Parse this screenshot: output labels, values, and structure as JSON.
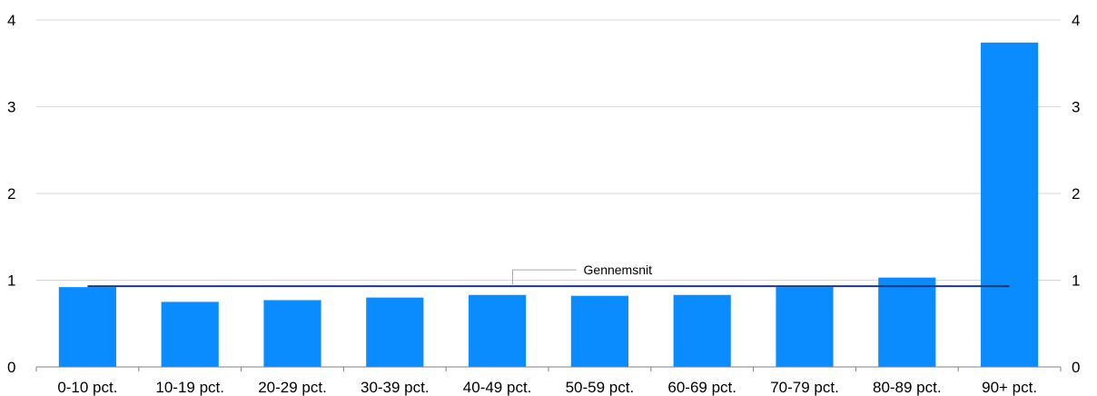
{
  "chart_data": {
    "type": "bar",
    "categories": [
      "0-10 pct.",
      "10-19 pct.",
      "20-29 pct.",
      "30-39 pct.",
      "40-49 pct.",
      "50-59 pct.",
      "60-69 pct.",
      "70-79 pct.",
      "80-89 pct.",
      "90+ pct."
    ],
    "values": [
      0.92,
      0.75,
      0.77,
      0.8,
      0.83,
      0.82,
      0.83,
      0.92,
      1.03,
      3.74
    ],
    "reference_line": {
      "label": "Gennemsnit",
      "value": 0.93
    },
    "ylim": [
      0,
      4
    ],
    "yticks_left": [
      "0",
      "1",
      "2",
      "3",
      "4"
    ],
    "yticks_right": [
      "0",
      "1",
      "2",
      "3",
      "4"
    ],
    "grid": true,
    "colors": {
      "bar": "#0a8cff",
      "average_line": "#1f3a73",
      "grid": "#d9d9d9",
      "axis": "#808080"
    }
  }
}
